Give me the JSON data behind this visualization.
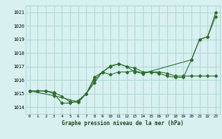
{
  "title": "Graphe pression niveau de la mer (hPa)",
  "background_color": "#d8f0f0",
  "grid_color": "#b0d8d8",
  "line_color": "#2d6e2d",
  "xlim": [
    -0.5,
    23.5
  ],
  "ylim": [
    1013.5,
    1021.5
  ],
  "yticks": [
    1014,
    1015,
    1016,
    1017,
    1018,
    1019,
    1020,
    1021
  ],
  "xticks": [
    0,
    1,
    2,
    3,
    4,
    5,
    6,
    7,
    8,
    9,
    10,
    11,
    12,
    13,
    14,
    15,
    16,
    17,
    18,
    19,
    20,
    21,
    22,
    23
  ],
  "series1": {
    "x": [
      0,
      1,
      2,
      3,
      4,
      5,
      6,
      7,
      8,
      9,
      10,
      11,
      12,
      13,
      14,
      15,
      16,
      17,
      18,
      19,
      20,
      21,
      22,
      23
    ],
    "y": [
      1015.2,
      1015.2,
      1015.2,
      1015.0,
      1014.3,
      1014.3,
      1014.5,
      1015.0,
      1015.8,
      1016.6,
      1016.4,
      1016.6,
      1016.6,
      1016.7,
      1016.5,
      1016.6,
      1016.5,
      1016.3,
      1016.2,
      1016.2,
      1017.5,
      1019.0,
      1019.2,
      1021.0
    ]
  },
  "series2": {
    "x": [
      0,
      1,
      2,
      3,
      4,
      5,
      6,
      7,
      8,
      9,
      10,
      11,
      12,
      13,
      14,
      15,
      16,
      17,
      18,
      19,
      20,
      21,
      22,
      23
    ],
    "y": [
      1015.2,
      1015.2,
      1015.2,
      1015.1,
      1014.8,
      1014.4,
      1014.35,
      1015.0,
      1016.0,
      1016.6,
      1017.0,
      1017.2,
      1017.0,
      1016.9,
      1016.6,
      1016.6,
      1016.6,
      1016.5,
      1016.3,
      1016.3,
      1016.3,
      1016.3,
      1016.3,
      1016.3
    ]
  },
  "series3": {
    "x": [
      0,
      3,
      6,
      7,
      8,
      9,
      10,
      11,
      12,
      13,
      14,
      20,
      21,
      22,
      23
    ],
    "y": [
      1015.2,
      1014.85,
      1014.4,
      1015.0,
      1016.2,
      1016.6,
      1017.05,
      1017.2,
      1017.0,
      1016.6,
      1016.5,
      1017.5,
      1019.0,
      1019.2,
      1020.7
    ]
  }
}
